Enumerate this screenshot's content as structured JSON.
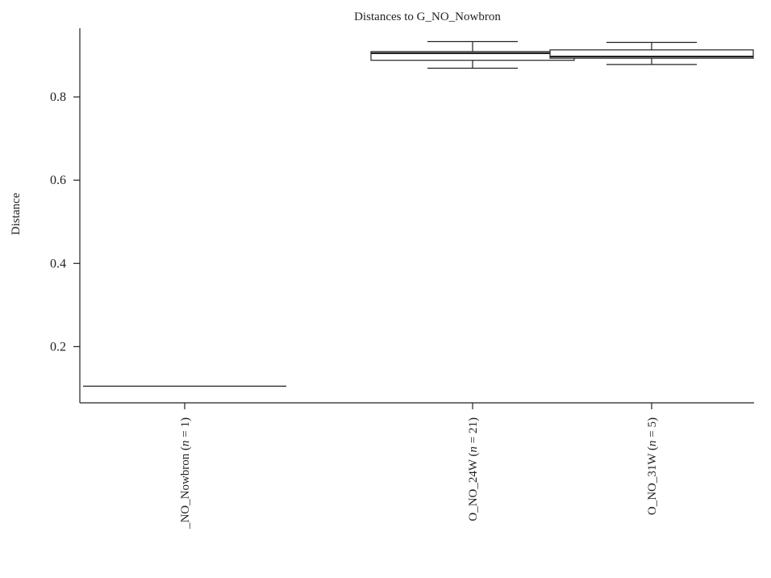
{
  "chart_data": {
    "type": "box",
    "title": "Distances to G_NO_Nowbron",
    "xlabel": "",
    "ylabel": "Distance",
    "ylim": [
      0.065,
      0.965
    ],
    "yticks": [
      0.2,
      0.4,
      0.6,
      0.8
    ],
    "ytick_labels": [
      "0.2",
      "0.4",
      "0.6",
      "0.8"
    ],
    "grid": false,
    "legend": "none",
    "categories": [
      {
        "prefix": "_NO_Nowbron (",
        "n": "1",
        "suffix": ")"
      },
      {
        "prefix": "O_NO_24W (",
        "n": "21",
        "suffix": ")"
      },
      {
        "prefix": "O_NO_31W (",
        "n": "5",
        "suffix": ")"
      }
    ],
    "boxes": [
      {
        "min": 0.105,
        "q1": 0.105,
        "median": 0.105,
        "q3": 0.105,
        "max": 0.105
      },
      {
        "min": 0.869,
        "q1": 0.888,
        "median": 0.905,
        "q3": 0.909,
        "max": 0.933
      },
      {
        "min": 0.878,
        "q1": 0.893,
        "median": 0.897,
        "q3": 0.913,
        "max": 0.931
      }
    ]
  }
}
